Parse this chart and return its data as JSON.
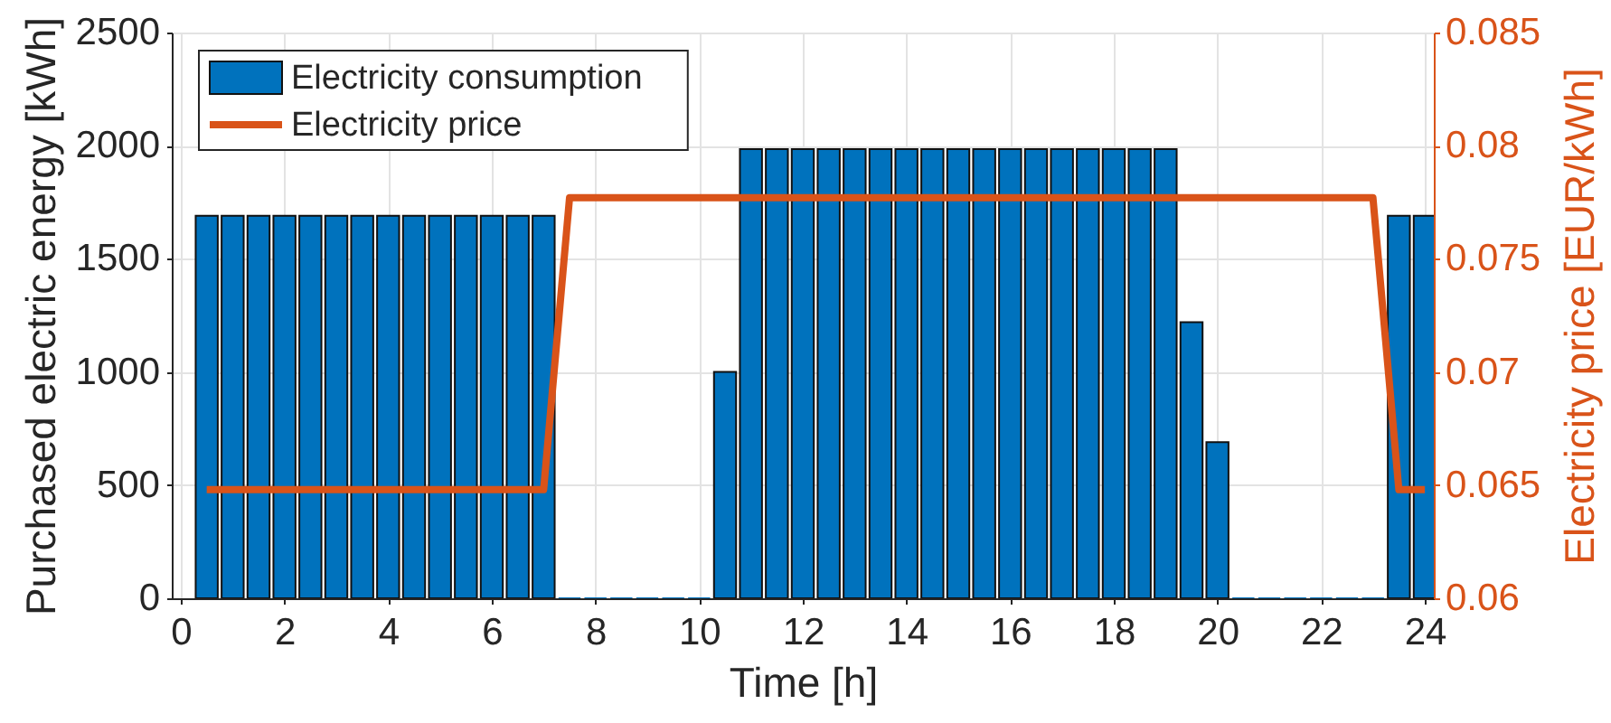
{
  "chart_data": {
    "type": "bar",
    "xlabel": "Time [h]",
    "ylabel": "Purchased electric energy [kWh]",
    "y2label": "Electricity price [EUR/kWh]",
    "x": [
      0.5,
      1.0,
      1.5,
      2.0,
      2.5,
      3.0,
      3.5,
      4.0,
      4.5,
      5.0,
      5.5,
      6.0,
      6.5,
      7.0,
      7.5,
      8.0,
      8.5,
      9.0,
      9.5,
      10.0,
      10.5,
      11.0,
      11.5,
      12.0,
      12.5,
      13.0,
      13.5,
      14.0,
      14.5,
      15.0,
      15.5,
      16.0,
      16.5,
      17.0,
      17.5,
      18.0,
      18.5,
      19.0,
      19.5,
      20.0,
      20.5,
      21.0,
      21.5,
      22.0,
      22.5,
      23.0,
      23.5,
      24.0
    ],
    "series": [
      {
        "name": "Electricity consumption",
        "color": "#0072bd",
        "values": [
          1690,
          1690,
          1690,
          1690,
          1690,
          1690,
          1690,
          1690,
          1690,
          1690,
          1690,
          1690,
          1690,
          1690,
          0,
          0,
          0,
          0,
          0,
          0,
          1000,
          1985,
          1985,
          1985,
          1985,
          1985,
          1985,
          1985,
          1985,
          1985,
          1985,
          1985,
          1985,
          1985,
          1985,
          1985,
          1985,
          1985,
          1220,
          690,
          0,
          0,
          0,
          0,
          0,
          0,
          1690,
          1690
        ]
      },
      {
        "name": "Electricity price",
        "type": "line",
        "axis": "y2",
        "color": "#d95319",
        "x": [
          0.5,
          7.0,
          7.5,
          23.0,
          23.5,
          24.0
        ],
        "values": [
          0.0648,
          0.0648,
          0.0777,
          0.0777,
          0.0648,
          0.0648
        ]
      }
    ],
    "xlim": [
      0,
      24
    ],
    "xticks": [
      0,
      2,
      4,
      6,
      8,
      10,
      12,
      14,
      16,
      18,
      20,
      22,
      24
    ],
    "ylim": [
      0,
      2500
    ],
    "yticks": [
      0,
      500,
      1000,
      1500,
      2000,
      2500
    ],
    "y2lim": [
      0.06,
      0.085
    ],
    "y2ticks": [
      0.06,
      0.065,
      0.07,
      0.075,
      0.08,
      0.085
    ],
    "grid": true,
    "legend": "top left"
  }
}
